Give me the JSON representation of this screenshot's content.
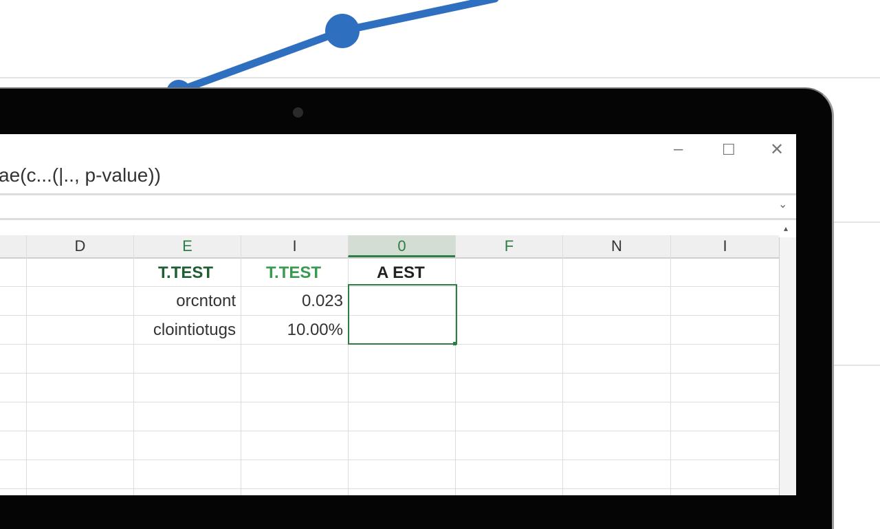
{
  "window": {
    "formula_text": "ae(c...(|.., p-value))",
    "minimize": "–",
    "maximize": "☐",
    "close": "✕",
    "formula_bar_expand": "⌄"
  },
  "columns": [
    "D",
    "E",
    "I",
    "0",
    "F",
    "N",
    "I"
  ],
  "rows": [
    {
      "E": "T.TEST",
      "I": "T.TEST",
      "0": "A EST"
    },
    {
      "E": "orcntont",
      "I": "0.023",
      "0": ""
    },
    {
      "E": "clointiotugs",
      "I": "10.00%",
      "0": ""
    }
  ],
  "colors": {
    "accent_green": "#2e7d46",
    "chart_blue": "#2f6fc0",
    "bezel": "#050505"
  }
}
